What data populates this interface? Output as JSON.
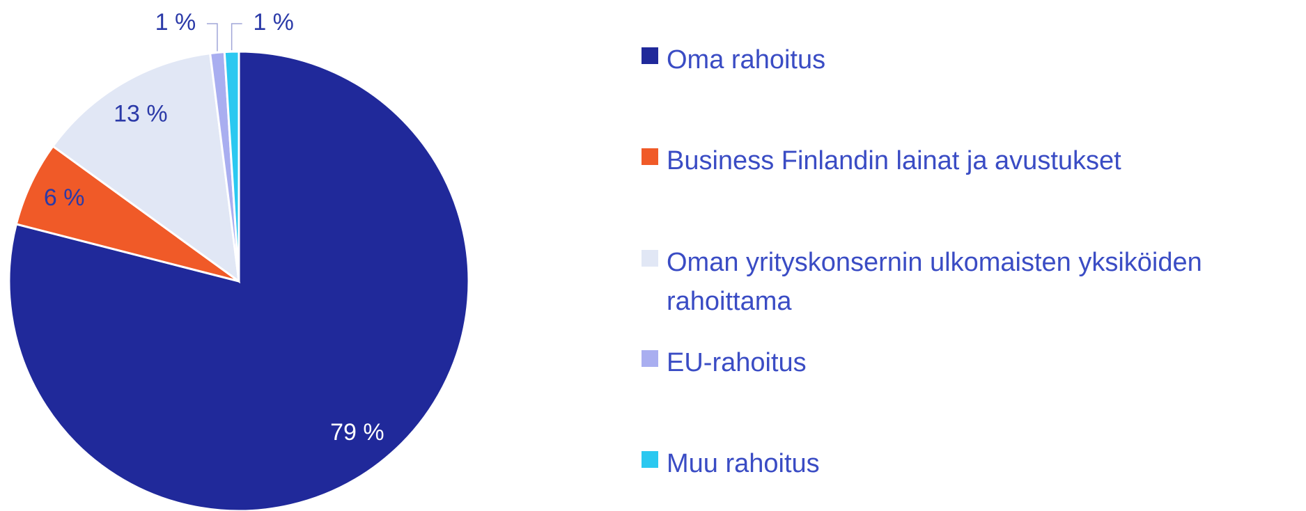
{
  "chart_data": {
    "type": "pie",
    "categories": [
      "Oma rahoitus",
      "Business Finlandin lainat ja avustukset",
      "Oman yrityskonsernin ulkomaisten yksiköiden rahoittama",
      "EU-rahoitus",
      "Muu rahoitus"
    ],
    "values": [
      79,
      6,
      13,
      1,
      1
    ],
    "value_labels": [
      "79 %",
      "6 %",
      "13 %",
      "1 %",
      "1 %"
    ],
    "colors": [
      "#20299a",
      "#f05a28",
      "#e1e7f5",
      "#a9aef0",
      "#2bc8f0"
    ],
    "legend": "right"
  }
}
